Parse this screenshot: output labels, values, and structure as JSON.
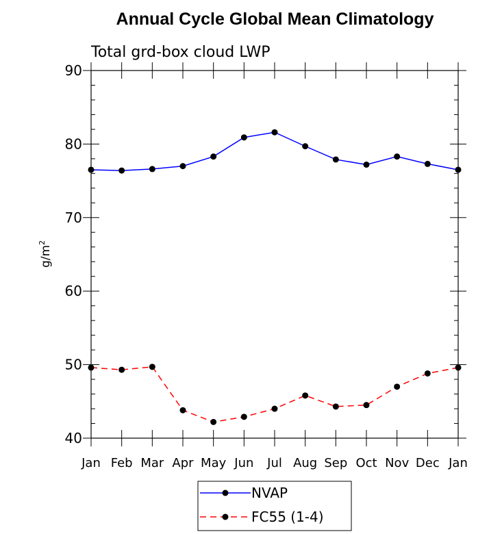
{
  "title": "Annual Cycle Global Mean Climatology",
  "chart_data": {
    "type": "line",
    "title": "Annual Cycle Global Mean Climatology",
    "subtitle": "Total grd-box cloud LWP",
    "ylabel": "g/m",
    "ylabel_superscript": "2",
    "xlabel": "",
    "ylim": [
      40,
      90
    ],
    "yticks": [
      40,
      50,
      60,
      70,
      80,
      90
    ],
    "categories": [
      "Jan",
      "Feb",
      "Mar",
      "Apr",
      "May",
      "Jun",
      "Jul",
      "Aug",
      "Sep",
      "Oct",
      "Nov",
      "Dec",
      "Jan"
    ],
    "series": [
      {
        "name": "NVAP",
        "color": "#0000ff",
        "dash": "solid",
        "values": [
          76.5,
          76.4,
          76.6,
          77.0,
          78.3,
          80.9,
          81.6,
          79.7,
          77.9,
          77.2,
          78.3,
          77.3,
          76.5
        ]
      },
      {
        "name": "FC55 (1-4)",
        "color": "#ff0000",
        "dash": "dashed",
        "values": [
          49.6,
          49.3,
          49.7,
          43.8,
          42.2,
          42.9,
          44.0,
          45.8,
          44.3,
          44.5,
          47.0,
          48.8,
          49.6
        ]
      }
    ],
    "grid": false,
    "legend": "bottom-center"
  }
}
